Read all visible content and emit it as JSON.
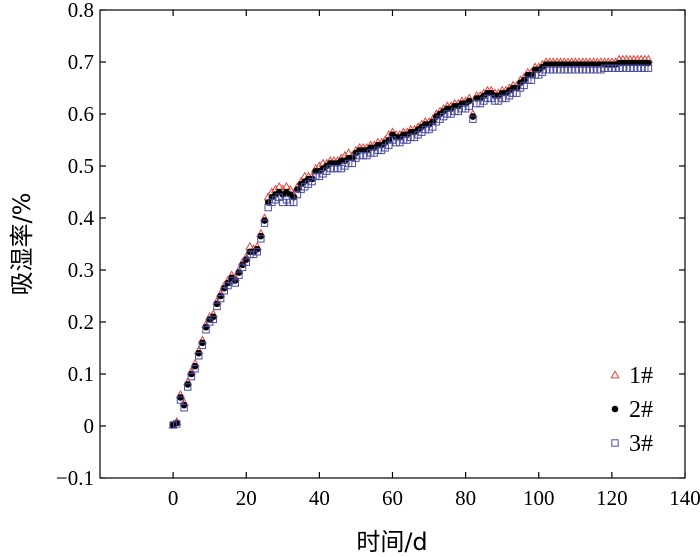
{
  "chart_data": {
    "type": "scatter",
    "xlabel": "时间/d",
    "ylabel": "吸湿率/%",
    "xlim": [
      -20,
      140
    ],
    "ylim": [
      -0.1,
      0.8
    ],
    "xticks": [
      0,
      20,
      40,
      60,
      80,
      100,
      120,
      140
    ],
    "yticks": [
      -0.1,
      0,
      0.1,
      0.2,
      0.3,
      0.4,
      0.5,
      0.6,
      0.7,
      0.8
    ],
    "ytick_labels": [
      "−0.1",
      "0",
      "0.1",
      "0.2",
      "0.3",
      "0.4",
      "0.5",
      "0.6",
      "0.7",
      "0.8"
    ],
    "grid": false,
    "legend_position": "bottom-right",
    "series": [
      {
        "name": "1#",
        "marker": "triangle-open",
        "color": "#e0443c",
        "x": [
          0,
          1,
          2,
          3,
          4,
          5,
          6,
          7,
          8,
          9,
          10,
          11,
          12,
          13,
          14,
          15,
          16,
          17,
          18,
          19,
          20,
          21,
          22,
          23,
          24,
          25,
          26,
          27,
          28,
          29,
          30,
          31,
          32,
          33,
          34,
          35,
          36,
          37,
          38,
          39,
          40,
          41,
          42,
          43,
          44,
          45,
          46,
          47,
          48,
          49,
          50,
          51,
          52,
          53,
          54,
          55,
          56,
          57,
          58,
          59,
          60,
          61,
          62,
          63,
          64,
          65,
          66,
          67,
          68,
          69,
          70,
          71,
          72,
          73,
          74,
          75,
          76,
          77,
          78,
          79,
          80,
          81,
          82,
          83,
          84,
          85,
          86,
          87,
          88,
          89,
          90,
          91,
          92,
          93,
          94,
          95,
          96,
          97,
          98,
          99,
          100,
          101,
          102,
          103,
          104,
          105,
          106,
          107,
          108,
          109,
          110,
          111,
          112,
          113,
          114,
          115,
          116,
          117,
          118,
          119,
          120,
          121,
          122,
          123,
          124,
          125,
          126,
          127,
          128,
          129,
          130
        ],
        "y": [
          0.002,
          0.008,
          0.06,
          0.045,
          0.085,
          0.105,
          0.12,
          0.145,
          0.165,
          0.195,
          0.21,
          0.215,
          0.24,
          0.255,
          0.27,
          0.28,
          0.29,
          0.285,
          0.3,
          0.315,
          0.325,
          0.345,
          0.34,
          0.345,
          0.37,
          0.4,
          0.44,
          0.45,
          0.455,
          0.46,
          0.455,
          0.46,
          0.455,
          0.445,
          0.46,
          0.47,
          0.48,
          0.48,
          0.48,
          0.495,
          0.5,
          0.505,
          0.505,
          0.51,
          0.51,
          0.51,
          0.515,
          0.52,
          0.525,
          0.52,
          0.53,
          0.535,
          0.535,
          0.535,
          0.54,
          0.54,
          0.545,
          0.545,
          0.55,
          0.56,
          0.565,
          0.56,
          0.56,
          0.565,
          0.565,
          0.57,
          0.57,
          0.575,
          0.58,
          0.585,
          0.585,
          0.59,
          0.6,
          0.605,
          0.61,
          0.615,
          0.615,
          0.62,
          0.62,
          0.625,
          0.625,
          0.63,
          0.6,
          0.635,
          0.635,
          0.64,
          0.645,
          0.645,
          0.64,
          0.64,
          0.645,
          0.645,
          0.65,
          0.655,
          0.655,
          0.665,
          0.67,
          0.68,
          0.68,
          0.69,
          0.69,
          0.695,
          0.7,
          0.7,
          0.7,
          0.7,
          0.7,
          0.7,
          0.7,
          0.7,
          0.7,
          0.7,
          0.7,
          0.7,
          0.7,
          0.7,
          0.7,
          0.7,
          0.7,
          0.7,
          0.7,
          0.7,
          0.705,
          0.705,
          0.705,
          0.705,
          0.705,
          0.705,
          0.705,
          0.705,
          0.705
        ]
      },
      {
        "name": "2#",
        "marker": "circle-filled",
        "color": "#000000",
        "x": [
          0,
          1,
          2,
          3,
          4,
          5,
          6,
          7,
          8,
          9,
          10,
          11,
          12,
          13,
          14,
          15,
          16,
          17,
          18,
          19,
          20,
          21,
          22,
          23,
          24,
          25,
          26,
          27,
          28,
          29,
          30,
          31,
          32,
          33,
          34,
          35,
          36,
          37,
          38,
          39,
          40,
          41,
          42,
          43,
          44,
          45,
          46,
          47,
          48,
          49,
          50,
          51,
          52,
          53,
          54,
          55,
          56,
          57,
          58,
          59,
          60,
          61,
          62,
          63,
          64,
          65,
          66,
          67,
          68,
          69,
          70,
          71,
          72,
          73,
          74,
          75,
          76,
          77,
          78,
          79,
          80,
          81,
          82,
          83,
          84,
          85,
          86,
          87,
          88,
          89,
          90,
          91,
          92,
          93,
          94,
          95,
          96,
          97,
          98,
          99,
          100,
          101,
          102,
          103,
          104,
          105,
          106,
          107,
          108,
          109,
          110,
          111,
          112,
          113,
          114,
          115,
          116,
          117,
          118,
          119,
          120,
          121,
          122,
          123,
          124,
          125,
          126,
          127,
          128,
          129,
          130
        ],
        "y": [
          0.002,
          0.006,
          0.055,
          0.04,
          0.08,
          0.1,
          0.115,
          0.14,
          0.16,
          0.19,
          0.205,
          0.21,
          0.235,
          0.25,
          0.265,
          0.275,
          0.285,
          0.28,
          0.295,
          0.31,
          0.32,
          0.335,
          0.335,
          0.34,
          0.365,
          0.395,
          0.43,
          0.44,
          0.445,
          0.45,
          0.445,
          0.45,
          0.445,
          0.44,
          0.455,
          0.465,
          0.47,
          0.475,
          0.475,
          0.49,
          0.49,
          0.495,
          0.5,
          0.505,
          0.505,
          0.505,
          0.51,
          0.51,
          0.515,
          0.515,
          0.525,
          0.53,
          0.53,
          0.53,
          0.535,
          0.535,
          0.54,
          0.54,
          0.545,
          0.55,
          0.56,
          0.555,
          0.555,
          0.56,
          0.56,
          0.565,
          0.565,
          0.57,
          0.575,
          0.58,
          0.58,
          0.585,
          0.595,
          0.6,
          0.605,
          0.61,
          0.61,
          0.615,
          0.615,
          0.62,
          0.62,
          0.625,
          0.595,
          0.63,
          0.63,
          0.635,
          0.64,
          0.64,
          0.635,
          0.635,
          0.64,
          0.64,
          0.645,
          0.65,
          0.65,
          0.66,
          0.665,
          0.675,
          0.675,
          0.685,
          0.685,
          0.69,
          0.695,
          0.695,
          0.695,
          0.695,
          0.695,
          0.695,
          0.695,
          0.695,
          0.695,
          0.695,
          0.695,
          0.695,
          0.695,
          0.695,
          0.695,
          0.695,
          0.695,
          0.695,
          0.695,
          0.695,
          0.698,
          0.698,
          0.698,
          0.698,
          0.698,
          0.698,
          0.698,
          0.698,
          0.698
        ]
      },
      {
        "name": "3#",
        "marker": "square-open",
        "color": "#4b4ea0",
        "x": [
          0,
          1,
          2,
          3,
          4,
          5,
          6,
          7,
          8,
          9,
          10,
          11,
          12,
          13,
          14,
          15,
          16,
          17,
          18,
          19,
          20,
          21,
          22,
          23,
          24,
          25,
          26,
          27,
          28,
          29,
          30,
          31,
          32,
          33,
          34,
          35,
          36,
          37,
          38,
          39,
          40,
          41,
          42,
          43,
          44,
          45,
          46,
          47,
          48,
          49,
          50,
          51,
          52,
          53,
          54,
          55,
          56,
          57,
          58,
          59,
          60,
          61,
          62,
          63,
          64,
          65,
          66,
          67,
          68,
          69,
          70,
          71,
          72,
          73,
          74,
          75,
          76,
          77,
          78,
          79,
          80,
          81,
          82,
          83,
          84,
          85,
          86,
          87,
          88,
          89,
          90,
          91,
          92,
          93,
          94,
          95,
          96,
          97,
          98,
          99,
          100,
          101,
          102,
          103,
          104,
          105,
          106,
          107,
          108,
          109,
          110,
          111,
          112,
          113,
          114,
          115,
          116,
          117,
          118,
          119,
          120,
          121,
          122,
          123,
          124,
          125,
          126,
          127,
          128,
          129,
          130
        ],
        "y": [
          0.002,
          0.004,
          0.05,
          0.035,
          0.075,
          0.095,
          0.11,
          0.135,
          0.155,
          0.185,
          0.2,
          0.205,
          0.23,
          0.245,
          0.26,
          0.27,
          0.28,
          0.275,
          0.29,
          0.305,
          0.315,
          0.33,
          0.33,
          0.335,
          0.36,
          0.39,
          0.42,
          0.43,
          0.435,
          0.44,
          0.43,
          0.435,
          0.43,
          0.43,
          0.445,
          0.455,
          0.46,
          0.465,
          0.47,
          0.48,
          0.48,
          0.485,
          0.49,
          0.495,
          0.495,
          0.495,
          0.495,
          0.5,
          0.505,
          0.505,
          0.515,
          0.52,
          0.52,
          0.52,
          0.525,
          0.525,
          0.53,
          0.53,
          0.535,
          0.54,
          0.55,
          0.545,
          0.545,
          0.55,
          0.55,
          0.555,
          0.555,
          0.56,
          0.565,
          0.57,
          0.57,
          0.575,
          0.585,
          0.59,
          0.595,
          0.6,
          0.6,
          0.605,
          0.605,
          0.61,
          0.61,
          0.615,
          0.59,
          0.62,
          0.62,
          0.625,
          0.63,
          0.63,
          0.625,
          0.625,
          0.63,
          0.63,
          0.635,
          0.64,
          0.64,
          0.65,
          0.655,
          0.665,
          0.665,
          0.675,
          0.675,
          0.68,
          0.685,
          0.685,
          0.685,
          0.685,
          0.685,
          0.685,
          0.685,
          0.685,
          0.685,
          0.685,
          0.685,
          0.685,
          0.685,
          0.685,
          0.685,
          0.685,
          0.688,
          0.688,
          0.688,
          0.688,
          0.688,
          0.688,
          0.688,
          0.688,
          0.688,
          0.688,
          0.688,
          0.688,
          0.688
        ]
      }
    ]
  }
}
